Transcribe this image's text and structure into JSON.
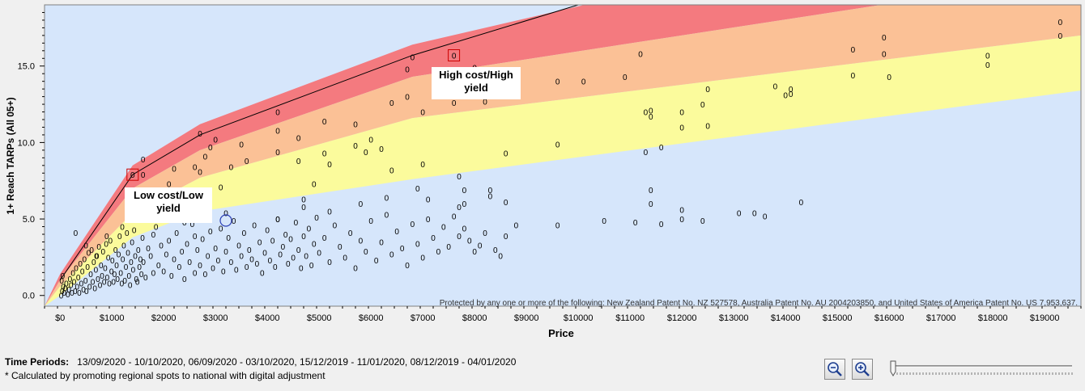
{
  "chart_data": {
    "type": "scatter",
    "xlabel": "Price",
    "ylabel": "1+ Reach TARPs (All 05+)",
    "xlim": [
      -300,
      19700
    ],
    "ylim": [
      -0.7,
      19.0
    ],
    "x_ticks": [
      "$0",
      "$1000",
      "$2000",
      "$3000",
      "$4000",
      "$5000",
      "$6000",
      "$7000",
      "$8000",
      "$9000",
      "$10000",
      "$11000",
      "$12000",
      "$13000",
      "$14000",
      "$15000",
      "$16000",
      "$17000",
      "$18000",
      "$19000"
    ],
    "x_tick_values": [
      0,
      1000,
      2000,
      3000,
      4000,
      5000,
      6000,
      7000,
      8000,
      9000,
      10000,
      11000,
      12000,
      13000,
      14000,
      15000,
      16000,
      17000,
      18000,
      19000
    ],
    "y_ticks": [
      "0.0",
      "5.0",
      "10.0",
      "15.0"
    ],
    "y_tick_values": [
      0,
      5,
      10,
      15
    ],
    "grid": false,
    "marker_label": "0",
    "bands": [
      {
        "name": "red",
        "color": "#f47a7f"
      },
      {
        "name": "orange",
        "color": "#fbc196"
      },
      {
        "name": "yellow",
        "color": "#fbfb9c"
      },
      {
        "name": "background",
        "color": "#d6e6fb"
      }
    ],
    "band_boundaries": {
      "x": [
        -300,
        0,
        1400,
        2700,
        6800,
        19700
      ],
      "top": [
        -0.7,
        1.4,
        8.5,
        11.2,
        16.4,
        26.5
      ],
      "red_bottom": [
        -0.7,
        1.0,
        7.0,
        9.5,
        14.3,
        21.0
      ],
      "orange_bottom": [
        -0.7,
        0.6,
        5.4,
        7.7,
        11.6,
        17.0
      ],
      "yellow_bottom": [
        -0.7,
        0.0,
        3.8,
        5.5,
        7.6,
        13.4
      ]
    },
    "reference_line": {
      "x": [
        0,
        1400,
        2700,
        6800,
        10000
      ],
      "y": [
        1.0,
        7.9,
        10.5,
        15.7,
        19.0
      ]
    },
    "points": [
      [
        20,
        0.0
      ],
      [
        40,
        0.3
      ],
      [
        60,
        0.6
      ],
      [
        30,
        1.0
      ],
      [
        50,
        1.3
      ],
      [
        80,
        0.2
      ],
      [
        100,
        0.5
      ],
      [
        120,
        0.8
      ],
      [
        150,
        0.1
      ],
      [
        170,
        0.4
      ],
      [
        190,
        1.1
      ],
      [
        210,
        0.7
      ],
      [
        230,
        0.2
      ],
      [
        250,
        1.5
      ],
      [
        270,
        0.9
      ],
      [
        290,
        0.3
      ],
      [
        310,
        1.8
      ],
      [
        330,
        0.6
      ],
      [
        350,
        1.2
      ],
      [
        370,
        0.2
      ],
      [
        390,
        2.1
      ],
      [
        410,
        0.8
      ],
      [
        430,
        1.6
      ],
      [
        450,
        0.4
      ],
      [
        470,
        2.4
      ],
      [
        490,
        1.0
      ],
      [
        510,
        0.3
      ],
      [
        530,
        1.9
      ],
      [
        550,
        2.8
      ],
      [
        570,
        0.6
      ],
      [
        590,
        1.4
      ],
      [
        610,
        3.0
      ],
      [
        630,
        0.9
      ],
      [
        650,
        2.2
      ],
      [
        670,
        0.5
      ],
      [
        690,
        1.7
      ],
      [
        710,
        2.6
      ],
      [
        730,
        1.1
      ],
      [
        750,
        3.2
      ],
      [
        770,
        0.7
      ],
      [
        790,
        2.0
      ],
      [
        810,
        1.3
      ],
      [
        830,
        2.9
      ],
      [
        850,
        0.9
      ],
      [
        870,
        1.8
      ],
      [
        890,
        3.4
      ],
      [
        910,
        1.2
      ],
      [
        930,
        2.5
      ],
      [
        950,
        0.8
      ],
      [
        970,
        3.6
      ],
      [
        990,
        1.6
      ],
      [
        1010,
        2.3
      ],
      [
        1030,
        0.9
      ],
      [
        1050,
        1.4
      ],
      [
        1070,
        3.0
      ],
      [
        1090,
        2.0
      ],
      [
        1110,
        1.1
      ],
      [
        1130,
        2.7
      ],
      [
        1150,
        3.9
      ],
      [
        1170,
        1.5
      ],
      [
        1190,
        0.8
      ],
      [
        1210,
        2.4
      ],
      [
        1230,
        3.3
      ],
      [
        1250,
        1.0
      ],
      [
        1270,
        1.9
      ],
      [
        1290,
        4.1
      ],
      [
        1310,
        2.8
      ],
      [
        1330,
        1.3
      ],
      [
        1350,
        0.7
      ],
      [
        1370,
        2.2
      ],
      [
        1390,
        3.5
      ],
      [
        1410,
        1.7
      ],
      [
        1430,
        4.3
      ],
      [
        1450,
        2.6
      ],
      [
        1470,
        1.1
      ],
      [
        1490,
        0.9
      ],
      [
        1510,
        3.0
      ],
      [
        1530,
        1.9
      ],
      [
        1550,
        2.4
      ],
      [
        1570,
        1.4
      ],
      [
        1590,
        3.8
      ],
      [
        1610,
        2.2
      ],
      [
        1650,
        1.2
      ],
      [
        1700,
        3.1
      ],
      [
        1750,
        2.6
      ],
      [
        1800,
        1.5
      ],
      [
        1850,
        4.5
      ],
      [
        1900,
        2.0
      ],
      [
        1950,
        3.3
      ],
      [
        2000,
        1.6
      ],
      [
        2050,
        2.7
      ],
      [
        2100,
        3.6
      ],
      [
        2150,
        1.3
      ],
      [
        2200,
        2.4
      ],
      [
        2250,
        4.1
      ],
      [
        2300,
        1.9
      ],
      [
        2350,
        2.9
      ],
      [
        2400,
        1.1
      ],
      [
        2450,
        3.4
      ],
      [
        2500,
        2.2
      ],
      [
        2550,
        4.7
      ],
      [
        2600,
        1.5
      ],
      [
        2650,
        3.0
      ],
      [
        2700,
        2.0
      ],
      [
        2750,
        3.7
      ],
      [
        2800,
        1.4
      ],
      [
        2850,
        2.6
      ],
      [
        2900,
        4.2
      ],
      [
        2950,
        1.8
      ],
      [
        3000,
        3.1
      ],
      [
        3050,
        2.3
      ],
      [
        3100,
        4.4
      ],
      [
        3150,
        1.6
      ],
      [
        3200,
        2.9
      ],
      [
        3250,
        3.8
      ],
      [
        3300,
        2.2
      ],
      [
        3350,
        4.9
      ],
      [
        3400,
        1.7
      ],
      [
        3450,
        3.3
      ],
      [
        3500,
        2.6
      ],
      [
        3550,
        4.1
      ],
      [
        3600,
        1.9
      ],
      [
        3650,
        3.0
      ],
      [
        3700,
        2.4
      ],
      [
        3750,
        4.6
      ],
      [
        3800,
        2.1
      ],
      [
        3850,
        3.5
      ],
      [
        3900,
        1.5
      ],
      [
        3950,
        2.8
      ],
      [
        4000,
        4.3
      ],
      [
        4050,
        2.3
      ],
      [
        4100,
        3.6
      ],
      [
        4150,
        1.9
      ],
      [
        4200,
        5.0
      ],
      [
        4250,
        2.7
      ],
      [
        4300,
        3.2
      ],
      [
        4350,
        4.0
      ],
      [
        4400,
        2.1
      ],
      [
        4450,
        3.7
      ],
      [
        4500,
        2.5
      ],
      [
        4550,
        4.8
      ],
      [
        4600,
        3.0
      ],
      [
        4650,
        1.8
      ],
      [
        4700,
        3.9
      ],
      [
        4750,
        2.6
      ],
      [
        4800,
        4.4
      ],
      [
        4850,
        2.0
      ],
      [
        4900,
        3.4
      ],
      [
        4950,
        5.1
      ],
      [
        5000,
        2.8
      ],
      [
        5100,
        3.8
      ],
      [
        5200,
        2.2
      ],
      [
        5300,
        4.6
      ],
      [
        5400,
        3.2
      ],
      [
        5500,
        2.5
      ],
      [
        5600,
        4.1
      ],
      [
        5700,
        1.8
      ],
      [
        5800,
        3.6
      ],
      [
        5900,
        2.9
      ],
      [
        6000,
        4.9
      ],
      [
        6100,
        2.3
      ],
      [
        6200,
        3.5
      ],
      [
        6300,
        5.3
      ],
      [
        6400,
        2.7
      ],
      [
        6500,
        4.2
      ],
      [
        6600,
        3.1
      ],
      [
        6700,
        2.0
      ],
      [
        6800,
        4.7
      ],
      [
        6900,
        3.4
      ],
      [
        7000,
        2.5
      ],
      [
        7100,
        5.0
      ],
      [
        7200,
        3.8
      ],
      [
        7300,
        2.9
      ],
      [
        7400,
        4.5
      ],
      [
        7500,
        3.2
      ],
      [
        7600,
        5.2
      ],
      [
        7700,
        3.9
      ],
      [
        7800,
        4.4
      ],
      [
        7900,
        3.6
      ],
      [
        8000,
        2.9
      ],
      [
        8100,
        3.3
      ],
      [
        8200,
        4.1
      ],
      [
        8400,
        3.0
      ],
      [
        8500,
        2.6
      ],
      [
        8600,
        3.9
      ],
      [
        8800,
        4.6
      ],
      [
        9600,
        4.6
      ],
      [
        10500,
        4.9
      ],
      [
        11100,
        4.8
      ],
      [
        11600,
        4.7
      ],
      [
        12000,
        5.0
      ],
      [
        12400,
        4.9
      ],
      [
        13100,
        5.4
      ],
      [
        13400,
        5.4
      ],
      [
        13600,
        5.2
      ],
      [
        300,
        4.1
      ],
      [
        500,
        3.3
      ],
      [
        700,
        2.6
      ],
      [
        900,
        3.9
      ],
      [
        1200,
        4.5
      ],
      [
        2400,
        4.8
      ],
      [
        2600,
        3.9
      ],
      [
        1800,
        4.0
      ],
      [
        3200,
        5.4
      ],
      [
        4700,
        5.8
      ],
      [
        5200,
        5.5
      ],
      [
        5800,
        6.0
      ],
      [
        6300,
        6.4
      ],
      [
        6900,
        7.0
      ],
      [
        7100,
        6.3
      ],
      [
        7700,
        5.8
      ],
      [
        8300,
        6.5
      ],
      [
        8600,
        6.1
      ],
      [
        11400,
        6.9
      ],
      [
        11400,
        6.0
      ],
      [
        12000,
        5.6
      ],
      [
        14300,
        6.1
      ],
      [
        7800,
        6.9
      ],
      [
        4200,
        5.0
      ],
      [
        1600,
        5.4
      ],
      [
        1700,
        6.1
      ],
      [
        2100,
        7.3
      ],
      [
        2400,
        6.1
      ],
      [
        2700,
        8.1
      ],
      [
        2800,
        9.1
      ],
      [
        3100,
        7.1
      ],
      [
        3300,
        8.4
      ],
      [
        3600,
        8.8
      ],
      [
        4200,
        9.4
      ],
      [
        4600,
        8.8
      ],
      [
        4900,
        7.3
      ],
      [
        5200,
        8.6
      ],
      [
        5700,
        9.8
      ],
      [
        5900,
        9.4
      ],
      [
        6200,
        9.6
      ],
      [
        6400,
        8.2
      ],
      [
        7000,
        8.6
      ],
      [
        7700,
        7.8
      ],
      [
        8600,
        9.3
      ],
      [
        9600,
        9.9
      ],
      [
        10900,
        14.3
      ],
      [
        11300,
        9.4
      ],
      [
        11300,
        12.0
      ],
      [
        11600,
        9.7
      ],
      [
        12000,
        11.0
      ],
      [
        12500,
        11.1
      ],
      [
        14000,
        13.1
      ],
      [
        14100,
        13.2
      ],
      [
        7800,
        6.0
      ],
      [
        8300,
        6.9
      ],
      [
        4700,
        6.3
      ],
      [
        5100,
        9.3
      ],
      [
        1600,
        8.9
      ],
      [
        2200,
        8.3
      ],
      [
        2600,
        8.4
      ],
      [
        2900,
        9.7
      ],
      [
        3500,
        9.9
      ],
      [
        4200,
        12.0
      ],
      [
        4200,
        10.8
      ],
      [
        4600,
        10.3
      ],
      [
        5100,
        11.4
      ],
      [
        5700,
        11.2
      ],
      [
        6000,
        10.2
      ],
      [
        6400,
        12.6
      ],
      [
        6700,
        13.0
      ],
      [
        7000,
        12.0
      ],
      [
        8200,
        12.7
      ],
      [
        9600,
        14.0
      ],
      [
        10100,
        14.0
      ],
      [
        11200,
        15.8
      ],
      [
        11400,
        12.1
      ],
      [
        11400,
        11.7
      ],
      [
        12000,
        12.0
      ],
      [
        12400,
        12.5
      ],
      [
        12500,
        13.5
      ],
      [
        13800,
        13.7
      ],
      [
        14100,
        13.5
      ],
      [
        15300,
        16.1
      ],
      [
        15300,
        14.4
      ],
      [
        15900,
        16.9
      ],
      [
        15900,
        15.8
      ],
      [
        16000,
        14.3
      ],
      [
        17900,
        15.7
      ],
      [
        17900,
        15.1
      ],
      [
        19300,
        17.9
      ],
      [
        19300,
        17.0
      ],
      [
        6800,
        15.6
      ],
      [
        6700,
        14.8
      ],
      [
        7600,
        12.6
      ],
      [
        7300,
        13.7
      ],
      [
        8000,
        14.9
      ],
      [
        2700,
        10.6
      ],
      [
        3000,
        10.2
      ],
      [
        1600,
        7.9
      ]
    ],
    "highlighted_point": [
      3200,
      4.9
    ],
    "annotations": [
      {
        "label": "Low cost/Low yield",
        "x": 1400,
        "y": 7.9
      },
      {
        "label": "High cost/High yield",
        "x": 7600,
        "y": 15.7
      }
    ],
    "notice": "Protected by any one or more of the following: New Zealand Patent No. NZ 527578, Australia Patent No. AU 2004203850, and United States of America Patent No. US 7,953,637."
  },
  "footer": {
    "time_periods_label": "Time Periods:",
    "time_periods_value": "13/09/2020 - 10/10/2020, 06/09/2020 - 03/10/2020, 15/12/2019 - 11/01/2020, 08/12/2019 - 04/01/2020",
    "note": "* Calculated by promoting regional spots to national with digital adjustment"
  },
  "controls": {
    "zoom_out": "zoom-out-icon",
    "zoom_in": "zoom-in-icon",
    "zoom_level": 0.0
  },
  "annotations_text": {
    "low_line1": "Low cost/Low",
    "low_line2": "yield",
    "high_line1": "High cost/High",
    "high_line2": "yield"
  }
}
